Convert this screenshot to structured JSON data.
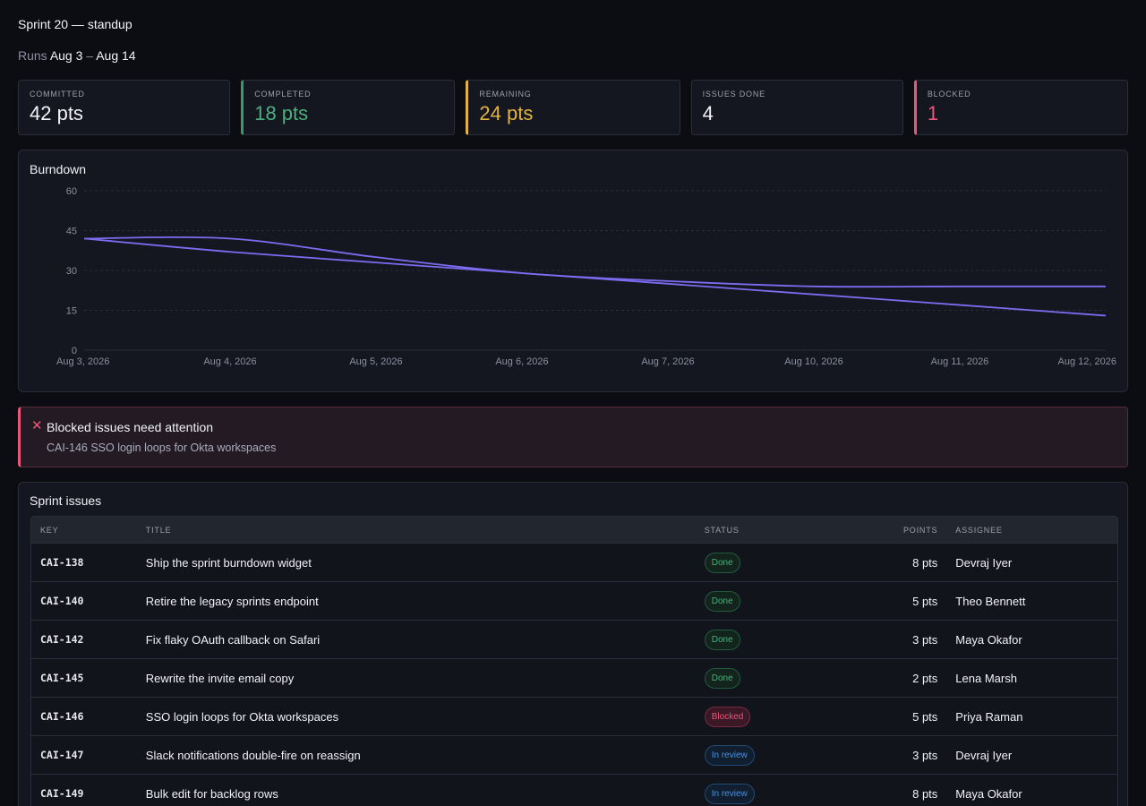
{
  "header": {
    "title": "Sprint 20 — standup",
    "runs_label": "Runs",
    "runs_start": "Aug 3",
    "runs_sep": "–",
    "runs_end": "Aug 14"
  },
  "stats": [
    {
      "label": "COMMITTED",
      "value": "42 pts"
    },
    {
      "label": "COMPLETED",
      "value": "18 pts"
    },
    {
      "label": "REMAINING",
      "value": "24 pts"
    },
    {
      "label": "ISSUES DONE",
      "value": "4"
    },
    {
      "label": "BLOCKED",
      "value": "1"
    }
  ],
  "colors": {
    "accent": "#7c6cf0",
    "completed": "#4caf7d",
    "remaining": "#e3b341",
    "blocked": "#e8587a",
    "in_review": "#4a90d9"
  },
  "burndown": {
    "title": "Burndown"
  },
  "chart_data": {
    "type": "line",
    "title": "Burndown",
    "xlabel": "",
    "ylabel": "",
    "x": [
      "Aug 3, 2026",
      "Aug 4, 2026",
      "Aug 5, 2026",
      "Aug 6, 2026",
      "Aug 7, 2026",
      "Aug 10, 2026",
      "Aug 11, 2026",
      "Aug 12, 2026"
    ],
    "ylim": [
      0,
      60
    ],
    "yticks": [
      0,
      15,
      30,
      45,
      60
    ],
    "grid": true,
    "series": [
      {
        "values": [
          42,
          42,
          35,
          29,
          26,
          24,
          24,
          24
        ]
      },
      {
        "values": [
          42,
          37,
          33,
          29,
          25,
          21,
          17,
          13
        ]
      }
    ]
  },
  "alert": {
    "icon": "close-icon",
    "title": "Blocked issues need attention",
    "body": "CAI-146 SSO login loops for Okta workspaces"
  },
  "issues": {
    "title": "Sprint issues",
    "columns": {
      "key": "KEY",
      "title": "TITLE",
      "status": "STATUS",
      "points": "POINTS",
      "assignee": "ASSIGNEE"
    },
    "rows": [
      {
        "key": "CAI-138",
        "title": "Ship the sprint burndown widget",
        "status": "Done",
        "points": "8 pts",
        "assignee": "Devraj Iyer"
      },
      {
        "key": "CAI-140",
        "title": "Retire the legacy sprints endpoint",
        "status": "Done",
        "points": "5 pts",
        "assignee": "Theo Bennett"
      },
      {
        "key": "CAI-142",
        "title": "Fix flaky OAuth callback on Safari",
        "status": "Done",
        "points": "3 pts",
        "assignee": "Maya Okafor"
      },
      {
        "key": "CAI-145",
        "title": "Rewrite the invite email copy",
        "status": "Done",
        "points": "2 pts",
        "assignee": "Lena Marsh"
      },
      {
        "key": "CAI-146",
        "title": "SSO login loops for Okta workspaces",
        "status": "Blocked",
        "points": "5 pts",
        "assignee": "Priya Raman"
      },
      {
        "key": "CAI-147",
        "title": "Slack notifications double-fire on reassign",
        "status": "In review",
        "points": "3 pts",
        "assignee": "Devraj Iyer"
      },
      {
        "key": "CAI-149",
        "title": "Bulk edit for backlog rows",
        "status": "In review",
        "points": "8 pts",
        "assignee": "Maya Okafor"
      }
    ]
  }
}
